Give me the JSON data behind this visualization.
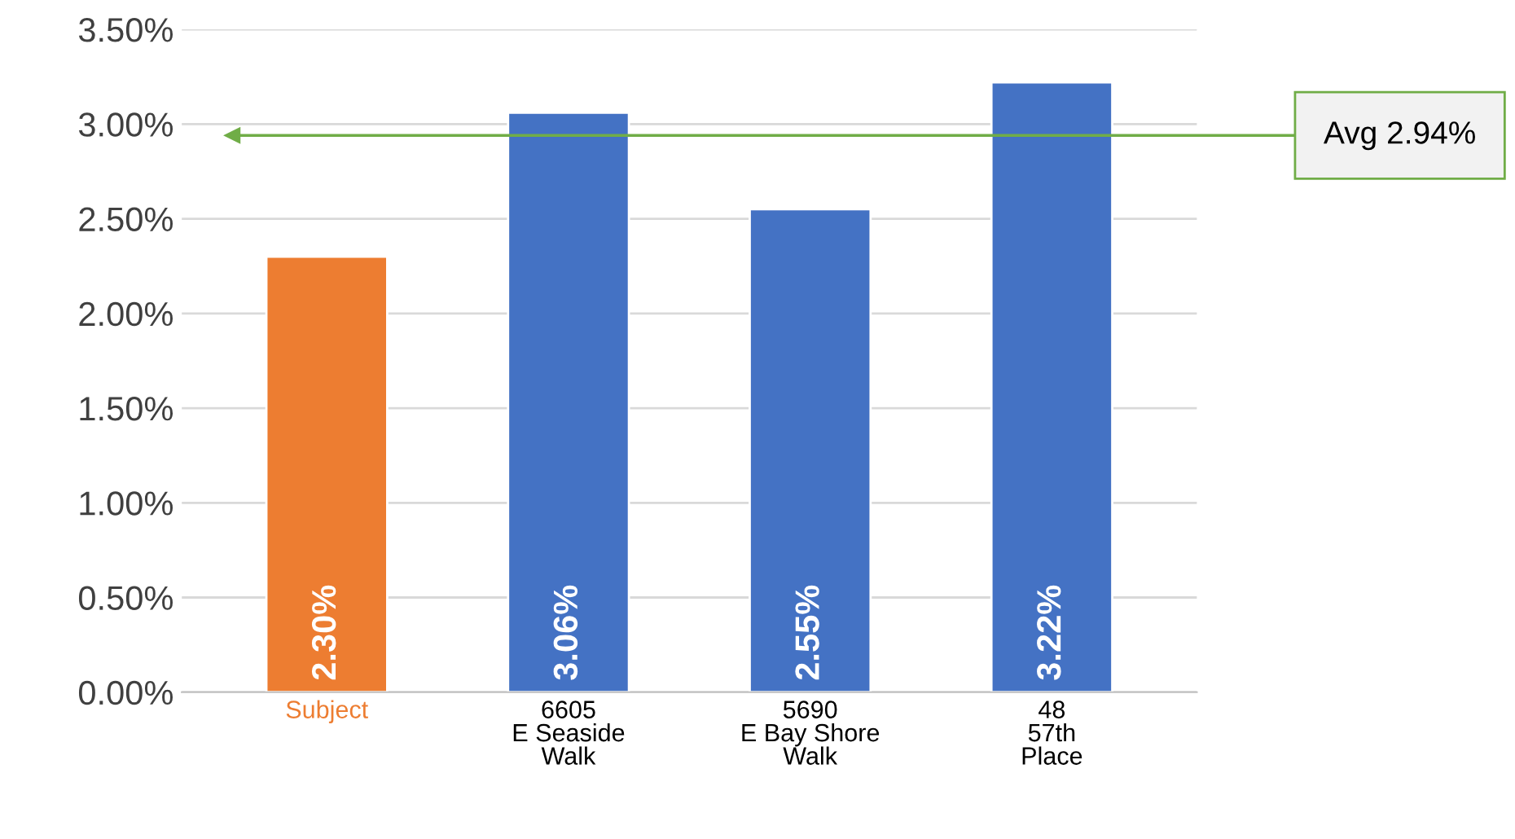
{
  "chart_data": {
    "type": "bar",
    "categories": [
      "Subject",
      "6605\nE Seaside\nWalk",
      "5690\nE Bay Shore\nWalk",
      "48\n57th\nPlace"
    ],
    "values": [
      2.3,
      3.06,
      2.55,
      3.22
    ],
    "colors": [
      "#ed7d31",
      "#4472c4",
      "#4472c4",
      "#4472c4"
    ],
    "value_labels": [
      "2.30%",
      "3.06%",
      "2.55%",
      "3.22%"
    ],
    "ylim": [
      0,
      3.5
    ],
    "yticks": [
      {
        "value": 0,
        "label": "0.00%"
      },
      {
        "value": 0.5,
        "label": "0.50%"
      },
      {
        "value": 1,
        "label": "1.00%"
      },
      {
        "value": 1.5,
        "label": "1.50%"
      },
      {
        "value": 2,
        "label": "2.00%"
      },
      {
        "value": 2.5,
        "label": "2.50%"
      },
      {
        "value": 3,
        "label": "3.00%"
      },
      {
        "value": 3.5,
        "label": "3.50%"
      }
    ],
    "ref_lines": [
      {
        "axis": "y",
        "value": 2.94,
        "label": "Avg 2.94%",
        "color": "#70ad47"
      }
    ],
    "grid": "y"
  }
}
